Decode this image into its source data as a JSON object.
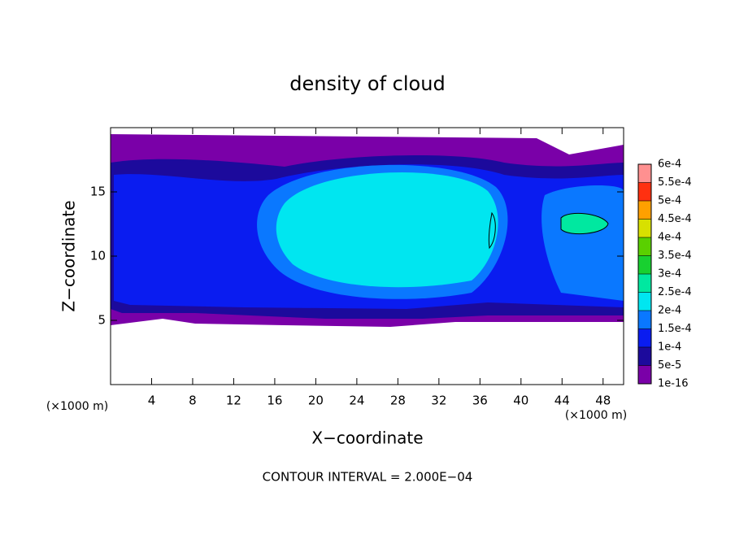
{
  "chart_data": {
    "type": "contour",
    "title": "density of cloud",
    "xlabel": "X−coordinate",
    "ylabel": "Z−coordinate",
    "xunit": "(×1000 m)",
    "yunit": "(×1000 m)",
    "note": "CONTOUR INTERVAL = 2.000E−04",
    "xlim": [
      0,
      50
    ],
    "ylim": [
      0,
      20
    ],
    "xticks": [
      4,
      8,
      12,
      16,
      20,
      24,
      28,
      32,
      36,
      40,
      44,
      48
    ],
    "yticks": [
      5,
      10,
      15
    ],
    "colorbar": {
      "levels": [
        {
          "value": 1e-16,
          "label": "1e-16"
        },
        {
          "value": 5e-05,
          "label": "5e-5"
        },
        {
          "value": 0.0001,
          "label": "1e-4"
        },
        {
          "value": 0.00015,
          "label": "1.5e-4"
        },
        {
          "value": 0.0002,
          "label": "2e-4"
        },
        {
          "value": 0.00025,
          "label": "2.5e-4"
        },
        {
          "value": 0.0003,
          "label": "3e-4"
        },
        {
          "value": 0.00035,
          "label": "3.5e-4"
        },
        {
          "value": 0.0004,
          "label": "4e-4"
        },
        {
          "value": 0.00045,
          "label": "4.5e-4"
        },
        {
          "value": 0.0005,
          "label": "5e-4"
        },
        {
          "value": 0.00055,
          "label": "5.5e-4"
        },
        {
          "value": 0.0006,
          "label": "6e-4"
        }
      ],
      "colors": [
        "#7a00a8",
        "#1c0a9c",
        "#0a1cf0",
        "#0a78ff",
        "#00e6f0",
        "#00e8a0",
        "#18d030",
        "#5ad000",
        "#d8e000",
        "#ffa000",
        "#ff3010",
        "#ff9090"
      ]
    }
  }
}
